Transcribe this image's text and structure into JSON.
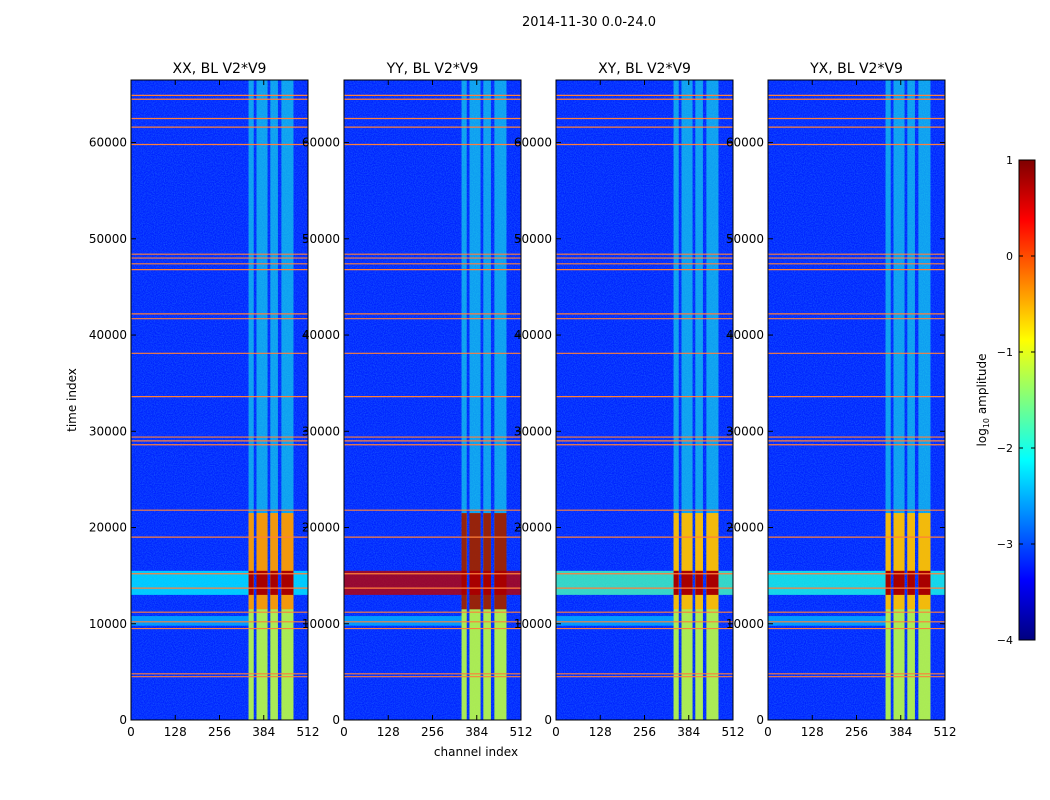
{
  "chart_data": {
    "type": "heatmap",
    "suptitle": "2014-11-30 0.0-24.0",
    "xlabel": "channel index",
    "ylabel": "time index",
    "xlim": [
      0,
      512
    ],
    "ylim": [
      0,
      66500
    ],
    "xticks": [
      0,
      128,
      256,
      384,
      512
    ],
    "yticks": [
      0,
      10000,
      20000,
      30000,
      40000,
      50000,
      60000
    ],
    "panels": [
      {
        "title": "XX, BL V2*V9",
        "mid_band_level": -2.2,
        "bright_block_level": -0.3
      },
      {
        "title": "YY, BL V2*V9",
        "mid_band_level": 0.7,
        "bright_block_level": 0.9
      },
      {
        "title": "XY, BL V2*V9",
        "mid_band_level": -1.8,
        "bright_block_level": -0.5
      },
      {
        "title": "YX, BL V2*V9",
        "mid_band_level": -2.0,
        "bright_block_level": -0.5
      }
    ],
    "colorbar": {
      "label_main": "log",
      "label_sub": "10",
      "label_rest": " amplitude",
      "range": [
        -4,
        1
      ],
      "ticks": [
        1,
        0,
        -1,
        -2,
        -3,
        -4
      ],
      "ticklabels": [
        "1",
        "0",
        "−1",
        "−2",
        "−3",
        "−4"
      ],
      "colors": [
        "#00007f",
        "#0000ff",
        "#007fff",
        "#00ffff",
        "#7fff7f",
        "#ffff00",
        "#ff7f00",
        "#ff0000",
        "#7f0000"
      ]
    },
    "rfi_time_rows": [
      4500,
      4800,
      9500,
      10200,
      11200,
      13700,
      15200,
      19000,
      21800,
      28600,
      29000,
      29400,
      33600,
      38100,
      41700,
      42200,
      46800,
      47400,
      48000,
      48400,
      59800,
      61600,
      62500,
      64500,
      64900
    ],
    "bright_channel_range": [
      340,
      470
    ],
    "bright_time_range": [
      11500,
      21500
    ],
    "intense_time_range": [
      13000,
      15500
    ],
    "sub_bands": [
      [
        340,
        355
      ],
      [
        363,
        395
      ],
      [
        403,
        425
      ],
      [
        435,
        470
      ]
    ]
  }
}
